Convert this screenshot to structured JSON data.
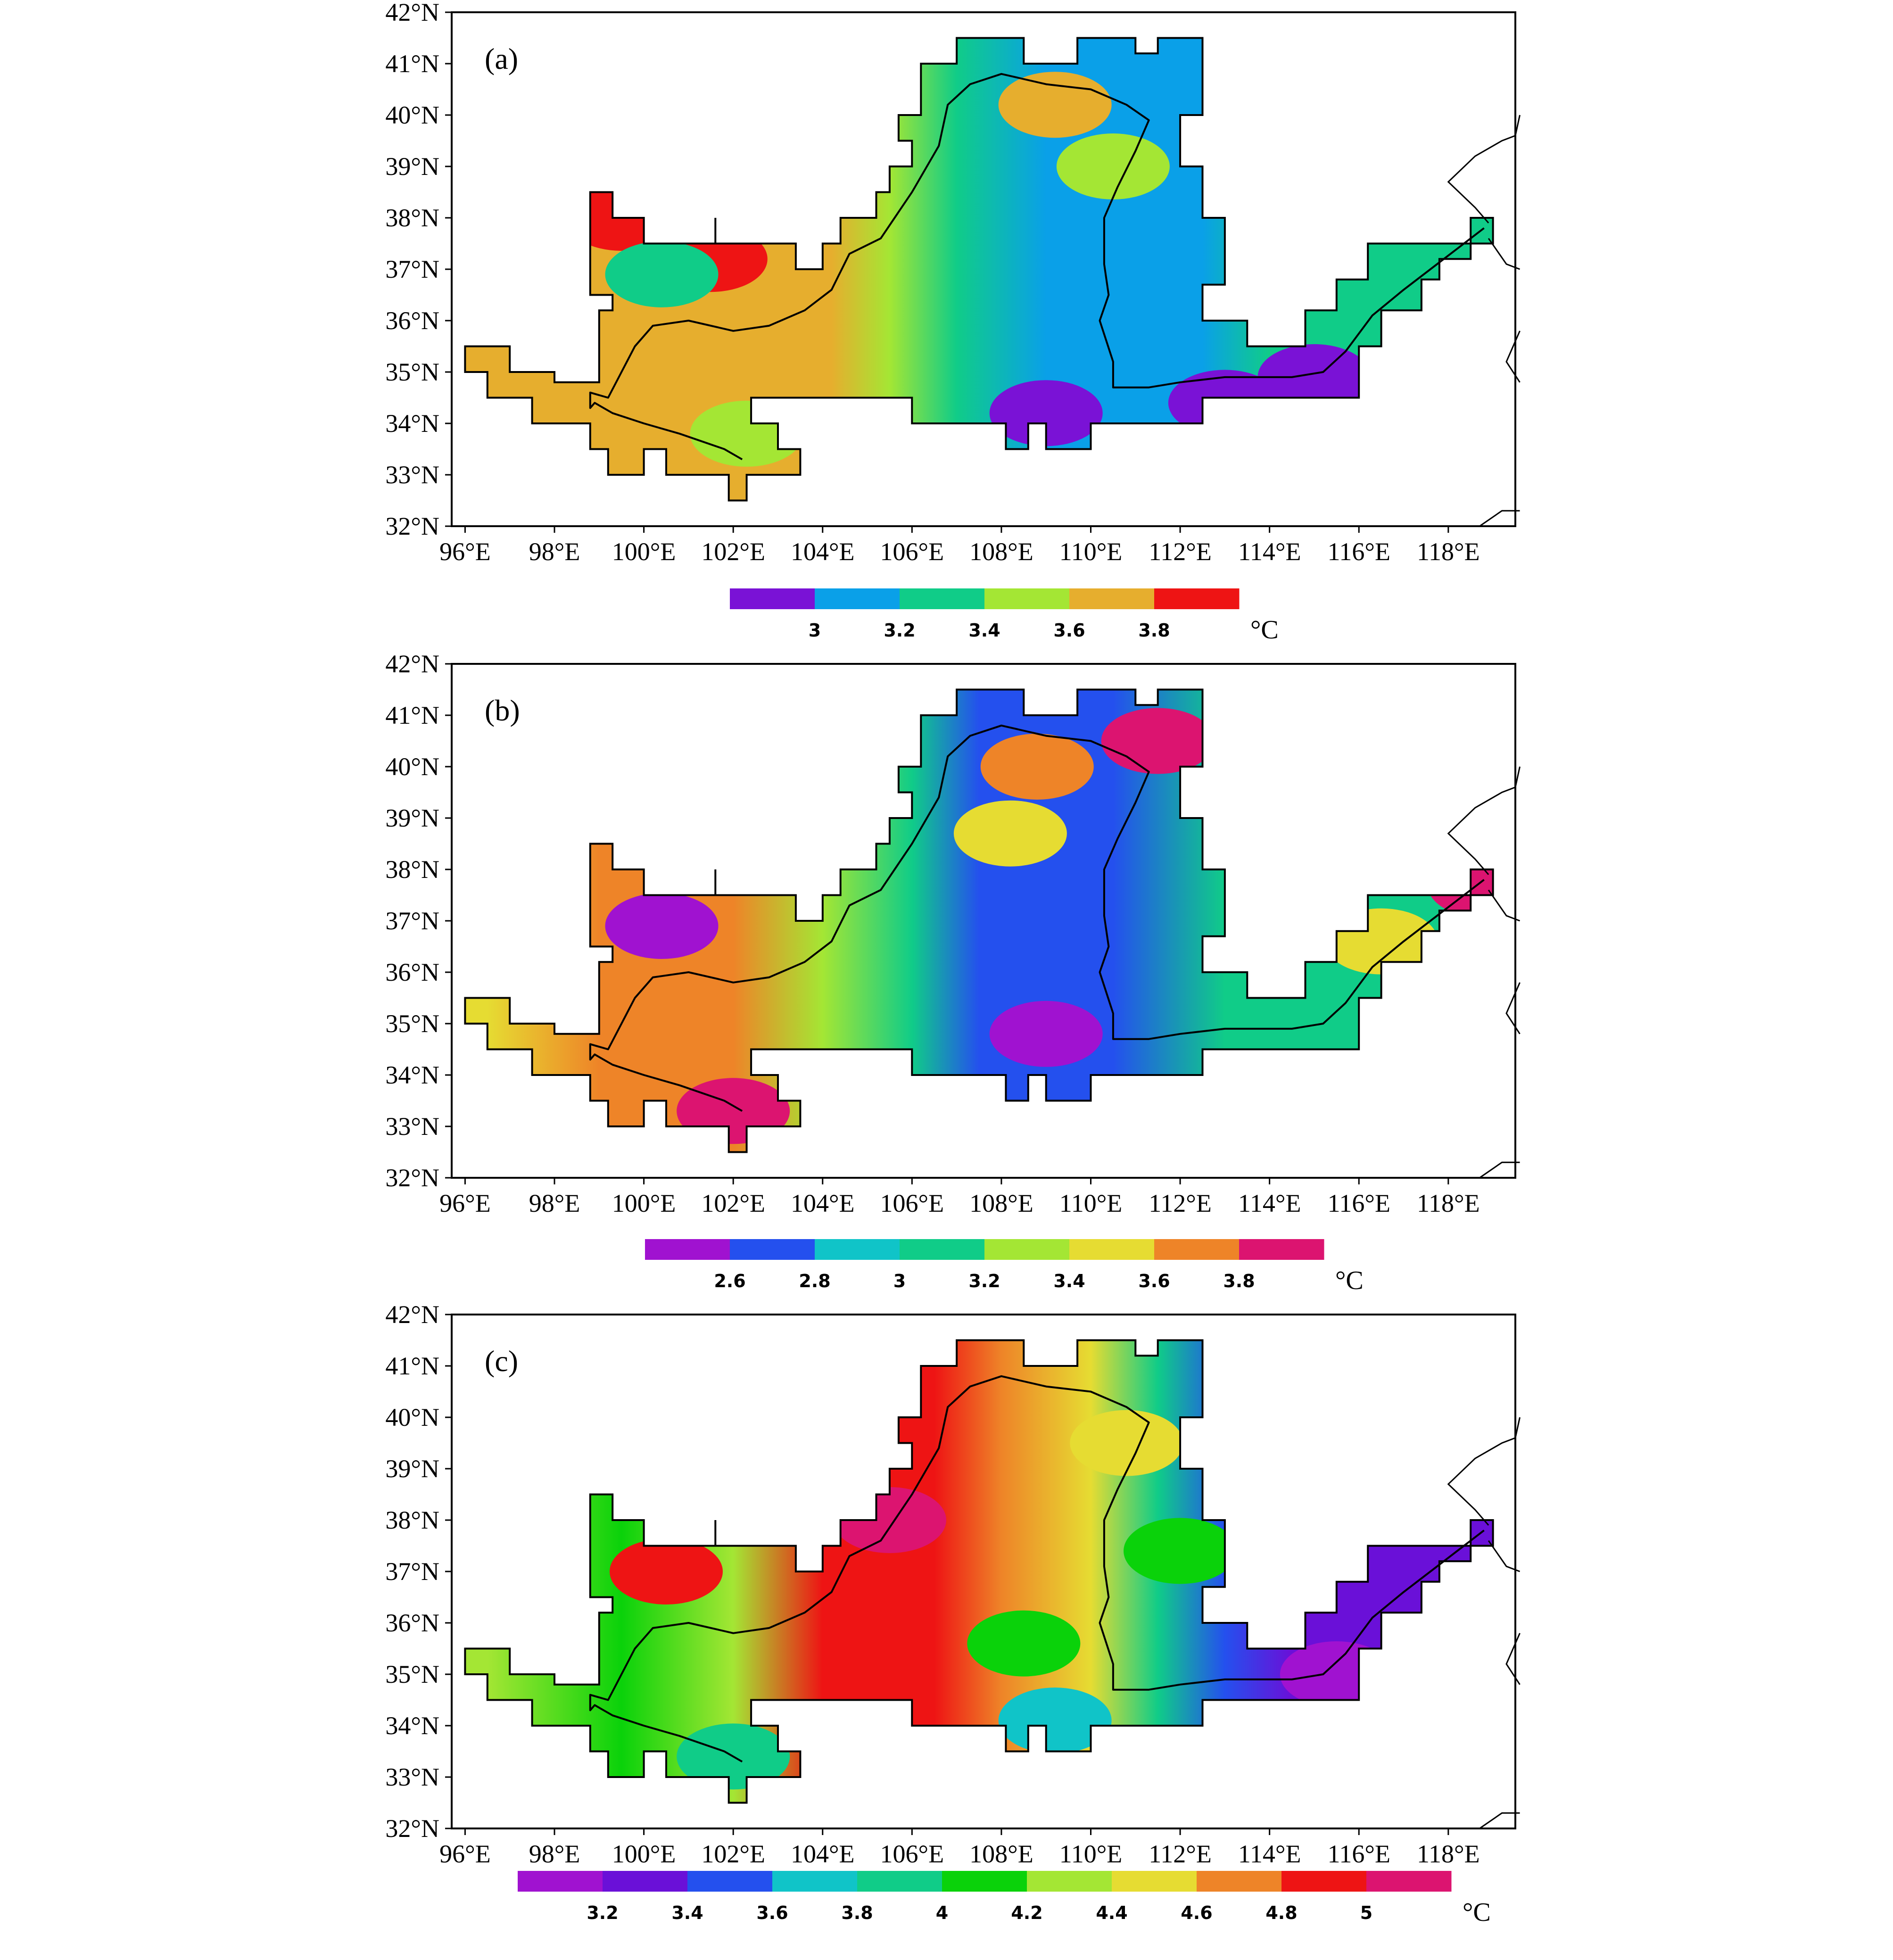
{
  "x_tick_labels": [
    "96°E",
    "98°E",
    "100°E",
    "102°E",
    "104°E",
    "106°E",
    "108°E",
    "110°E",
    "112°E",
    "114°E",
    "116°E",
    "118°E"
  ],
  "y_tick_labels": [
    "32°N",
    "33°N",
    "34°N",
    "35°N",
    "36°N",
    "37°N",
    "38°N",
    "39°N",
    "40°N",
    "41°N",
    "42°N"
  ],
  "map_extent": {
    "lon": [
      95.7,
      119.5
    ],
    "lat": [
      32,
      42
    ]
  },
  "unit": "°C",
  "boundary_color": "#000000",
  "panels": [
    {
      "label": "(a)",
      "colorbar": {
        "colors": [
          "#7a12d6",
          "#0aa0e8",
          "#10cc88",
          "#a4e634",
          "#e6ae2e",
          "#ee1414"
        ],
        "tick_labels": [
          "3",
          "3.2",
          "3.4",
          "3.6",
          "3.8"
        ],
        "tick_values": [
          3,
          3.2,
          3.4,
          3.6,
          3.8
        ]
      },
      "field_ramp": [
        {
          "lon": 96.5,
          "color": "#e6ae2e"
        },
        {
          "lon": 104.2,
          "color": "#e6ae2e"
        },
        {
          "lon": 105.5,
          "color": "#a4e634"
        },
        {
          "lon": 107,
          "color": "#10cc88"
        },
        {
          "lon": 109,
          "color": "#0aa0e8"
        },
        {
          "lon": 112.5,
          "color": "#0aa0e8"
        },
        {
          "lon": 114,
          "color": "#10cc88"
        },
        {
          "lon": 119,
          "color": "#10cc88"
        }
      ],
      "highlights": [
        {
          "lon": 99.5,
          "lat": 38.0,
          "color": "#ee1414"
        },
        {
          "lon": 101.5,
          "lat": 37.2,
          "color": "#ee1414"
        },
        {
          "lon": 100.4,
          "lat": 36.9,
          "color": "#10cc88"
        },
        {
          "lon": 109.0,
          "lat": 34.2,
          "color": "#7a12d6"
        },
        {
          "lon": 113.0,
          "lat": 34.4,
          "color": "#7a12d6"
        },
        {
          "lon": 115.0,
          "lat": 34.9,
          "color": "#7a12d6"
        },
        {
          "lon": 109.2,
          "lat": 40.2,
          "color": "#e6ae2e"
        },
        {
          "lon": 110.5,
          "lat": 39.0,
          "color": "#a4e634"
        },
        {
          "lon": 102.3,
          "lat": 33.8,
          "color": "#a4e634"
        }
      ]
    },
    {
      "label": "(b)",
      "colorbar": {
        "colors": [
          "#a012d0",
          "#2450ee",
          "#10c4c8",
          "#10cc88",
          "#a4e634",
          "#e6dc32",
          "#ee8428",
          "#dc1470"
        ],
        "tick_labels": [
          "2.6",
          "2.8",
          "3",
          "3.2",
          "3.4",
          "3.6",
          "3.8"
        ],
        "tick_values": [
          2.6,
          2.8,
          3,
          3.2,
          3.4,
          3.6,
          3.8
        ]
      },
      "field_ramp": [
        {
          "lon": 96.5,
          "color": "#e6dc32"
        },
        {
          "lon": 99,
          "color": "#ee8428"
        },
        {
          "lon": 102,
          "color": "#ee8428"
        },
        {
          "lon": 104,
          "color": "#a4e634"
        },
        {
          "lon": 106,
          "color": "#10cc88"
        },
        {
          "lon": 107.5,
          "color": "#2450ee"
        },
        {
          "lon": 110.5,
          "color": "#2450ee"
        },
        {
          "lon": 113,
          "color": "#10cc88"
        },
        {
          "lon": 119,
          "color": "#10cc88"
        }
      ],
      "highlights": [
        {
          "lon": 100.4,
          "lat": 36.9,
          "color": "#a012d0"
        },
        {
          "lon": 109.0,
          "lat": 34.8,
          "color": "#a012d0"
        },
        {
          "lon": 111.5,
          "lat": 40.5,
          "color": "#dc1470"
        },
        {
          "lon": 102.0,
          "lat": 33.3,
          "color": "#dc1470"
        },
        {
          "lon": 108.8,
          "lat": 40.0,
          "color": "#ee8428"
        },
        {
          "lon": 108.2,
          "lat": 38.7,
          "color": "#e6dc32"
        },
        {
          "lon": 116.5,
          "lat": 36.6,
          "color": "#e6dc32"
        },
        {
          "lon": 118.8,
          "lat": 37.7,
          "color": "#dc1470"
        }
      ]
    },
    {
      "label": "(c)",
      "colorbar": {
        "colors": [
          "#a012d0",
          "#6a10d8",
          "#2450ee",
          "#10c4c8",
          "#10cc88",
          "#0ad20a",
          "#a4e634",
          "#e6dc32",
          "#ee8428",
          "#ee1414",
          "#dc1470"
        ],
        "tick_labels": [
          "3.2",
          "3.4",
          "3.6",
          "3.8",
          "4",
          "4.2",
          "4.4",
          "4.6",
          "4.8",
          "5"
        ],
        "tick_values": [
          3.2,
          3.4,
          3.6,
          3.8,
          4,
          4.2,
          4.4,
          4.6,
          4.8,
          5
        ]
      },
      "field_ramp": [
        {
          "lon": 96.5,
          "color": "#a4e634"
        },
        {
          "lon": 99.5,
          "color": "#0ad20a"
        },
        {
          "lon": 102,
          "color": "#a4e634"
        },
        {
          "lon": 104,
          "color": "#ee1414"
        },
        {
          "lon": 106.5,
          "color": "#ee1414"
        },
        {
          "lon": 108,
          "color": "#ee8428"
        },
        {
          "lon": 110,
          "color": "#e6dc32"
        },
        {
          "lon": 111.5,
          "color": "#10cc88"
        },
        {
          "lon": 113,
          "color": "#2450ee"
        },
        {
          "lon": 114.5,
          "color": "#6a10d8"
        },
        {
          "lon": 119,
          "color": "#6a10d8"
        }
      ],
      "highlights": [
        {
          "lon": 105.5,
          "lat": 38.0,
          "color": "#dc1470"
        },
        {
          "lon": 100.5,
          "lat": 37.0,
          "color": "#ee1414"
        },
        {
          "lon": 108.5,
          "lat": 35.6,
          "color": "#0ad20a"
        },
        {
          "lon": 109.2,
          "lat": 34.1,
          "color": "#10c4c8"
        },
        {
          "lon": 102.0,
          "lat": 33.4,
          "color": "#10cc88"
        },
        {
          "lon": 110.8,
          "lat": 39.5,
          "color": "#e6dc32"
        },
        {
          "lon": 112.0,
          "lat": 37.4,
          "color": "#0ad20a"
        },
        {
          "lon": 115.5,
          "lat": 35.0,
          "color": "#a012d0"
        }
      ]
    }
  ]
}
